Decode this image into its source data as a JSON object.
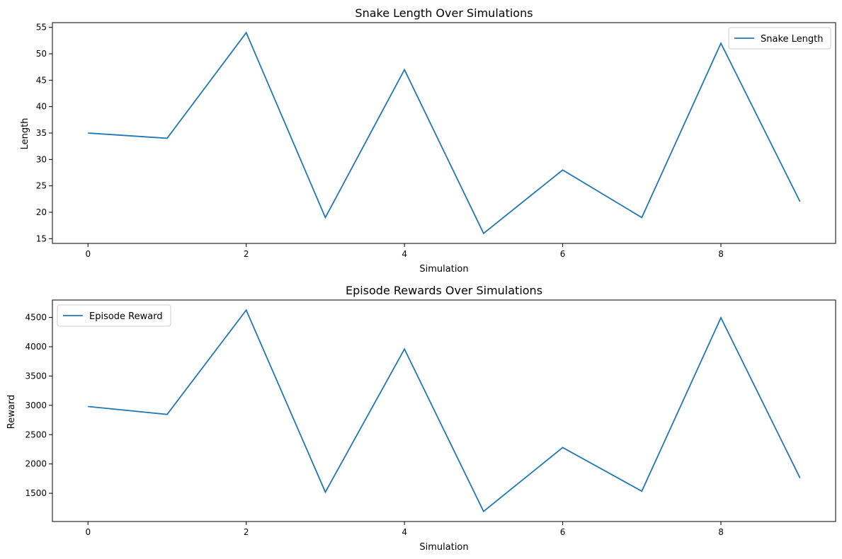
{
  "line_color": "#1f77b4",
  "chart_data": [
    {
      "type": "line",
      "title": "Snake Length Over Simulations",
      "xlabel": "Simulation",
      "ylabel": "Length",
      "x": [
        0,
        1,
        2,
        3,
        4,
        5,
        6,
        7,
        8,
        9
      ],
      "series": [
        {
          "name": "Snake Length",
          "values": [
            35,
            34,
            54,
            19,
            47,
            16,
            28,
            19,
            52,
            22
          ]
        }
      ],
      "xlim": [
        -0.45,
        9.45
      ],
      "ylim": [
        14.1,
        55.9
      ],
      "xticks": [
        0,
        2,
        4,
        6,
        8
      ],
      "xtick_labels": [
        "0",
        "2",
        "4",
        "6",
        "8"
      ],
      "yticks": [
        15,
        20,
        25,
        30,
        35,
        40,
        45,
        50,
        55
      ],
      "ytick_labels": [
        "15",
        "20",
        "25",
        "30",
        "35",
        "40",
        "45",
        "50",
        "55"
      ],
      "legend_position": "upper right",
      "grid": false
    },
    {
      "type": "line",
      "title": "Episode Rewards Over Simulations",
      "xlabel": "Simulation",
      "ylabel": "Reward",
      "x": [
        0,
        1,
        2,
        3,
        4,
        5,
        6,
        7,
        8,
        9
      ],
      "series": [
        {
          "name": "Episode Reward",
          "values": [
            2980,
            2845,
            4625,
            1520,
            3960,
            1190,
            2280,
            1535,
            4495,
            1760
          ]
        }
      ],
      "xlim": [
        -0.45,
        9.45
      ],
      "ylim": [
        1018,
        4797
      ],
      "xticks": [
        0,
        2,
        4,
        6,
        8
      ],
      "xtick_labels": [
        "0",
        "2",
        "4",
        "6",
        "8"
      ],
      "yticks": [
        1500,
        2000,
        2500,
        3000,
        3500,
        4000,
        4500
      ],
      "ytick_labels": [
        "1500",
        "2000",
        "2500",
        "3000",
        "3500",
        "4000",
        "4500"
      ],
      "legend_position": "upper left",
      "grid": false
    }
  ]
}
